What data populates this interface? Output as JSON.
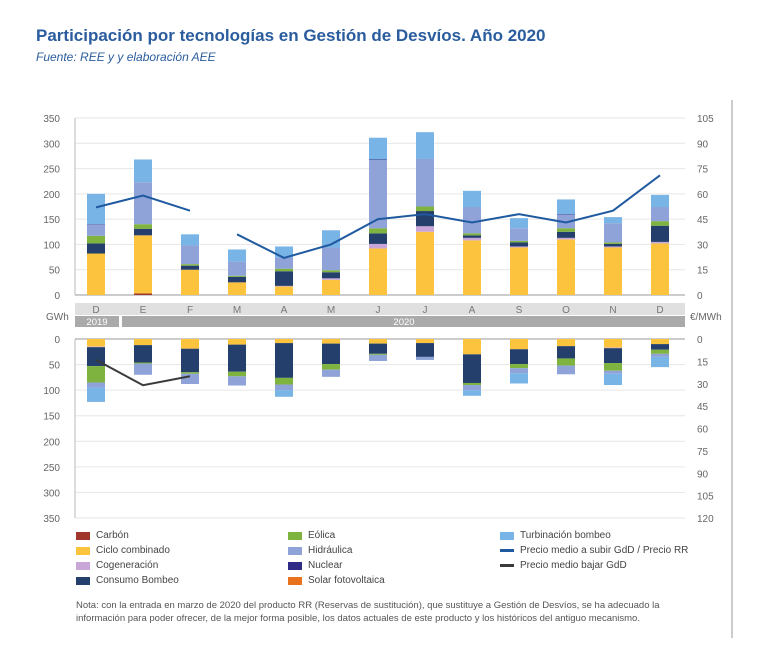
{
  "title": "Participación por tecnologías en Gestión de Desvíos. Año 2020",
  "subtitle": "Fuente: REE y y elaboración AEE",
  "note": "Nota: con la entrada en marzo de 2020 del producto RR (Reservas de sustitución), que sustituye a Gestión de Desvíos, se ha adecuado la información para poder ofrecer, de la mejor forma posible, los datos actuales de este producto y los históricos del antiguo mecanismo.",
  "chart_data": {
    "type": "bar",
    "stacked": true,
    "categories": [
      "D",
      "E",
      "F",
      "M",
      "A",
      "M",
      "J",
      "J",
      "A",
      "S",
      "O",
      "N",
      "D"
    ],
    "year_labels": [
      {
        "label": "2019",
        "months": 1
      },
      {
        "label": "2020",
        "months": 12
      }
    ],
    "left_unit": "GWh",
    "right_unit": "€/MWh",
    "top_ylim": [
      0,
      350
    ],
    "top_yticks": [
      0,
      50,
      100,
      150,
      200,
      250,
      300,
      350
    ],
    "top_y2lim": [
      0,
      105
    ],
    "top_y2ticks": [
      0,
      15,
      30,
      45,
      60,
      75,
      90,
      105
    ],
    "bottom_ylim": [
      0,
      350
    ],
    "bottom_yticks": [
      0,
      50,
      100,
      150,
      200,
      250,
      300,
      350
    ],
    "bottom_y2lim": [
      0,
      120
    ],
    "bottom_y2ticks": [
      0,
      15,
      30,
      45,
      60,
      75,
      90,
      105,
      120
    ],
    "grid": true,
    "series": [
      {
        "name": "Carbón",
        "color": "#a0372a",
        "up": [
          0,
          3,
          0,
          0,
          0,
          0,
          0,
          0,
          0,
          0,
          0,
          0,
          0
        ],
        "down": [
          0,
          0,
          0,
          0,
          0,
          0,
          0,
          0,
          0,
          0,
          0,
          0,
          0
        ]
      },
      {
        "name": "Ciclo combinado",
        "color": "#fcc33f",
        "up": [
          82,
          115,
          50,
          25,
          17,
          30,
          92,
          125,
          108,
          94,
          110,
          94,
          102
        ],
        "down": [
          15,
          12,
          19,
          11,
          8,
          9,
          9,
          8,
          30,
          20,
          14,
          17,
          10
        ]
      },
      {
        "name": "Cogeneración",
        "color": "#c9a6d8",
        "up": [
          0,
          0,
          0,
          0,
          1,
          3,
          9,
          11,
          5,
          2,
          3,
          2,
          3
        ],
        "down": [
          1,
          0,
          0,
          0,
          0,
          0,
          0,
          0,
          0,
          0,
          0,
          1,
          0
        ]
      },
      {
        "name": "Consumo Bombeo",
        "color": "#243f6b",
        "up": [
          20,
          13,
          8,
          11,
          29,
          12,
          21,
          30,
          5,
          8,
          12,
          5,
          32
        ],
        "down": [
          37,
          34,
          46,
          53,
          68,
          40,
          20,
          27,
          56,
          29,
          24,
          29,
          11
        ]
      },
      {
        "name": "Eólica",
        "color": "#7fb33f",
        "up": [
          15,
          9,
          3,
          2,
          5,
          4,
          10,
          9,
          4,
          3,
          7,
          3,
          9
        ],
        "down": [
          32,
          2,
          3,
          9,
          13,
          11,
          2,
          0,
          4,
          8,
          14,
          15,
          8
        ]
      },
      {
        "name": "Hidráulica",
        "color": "#8fa3d8",
        "up": [
          22,
          83,
          37,
          28,
          22,
          45,
          135,
          94,
          52,
          25,
          27,
          38,
          28
        ],
        "down": [
          10,
          22,
          20,
          18,
          11,
          14,
          12,
          6,
          10,
          10,
          17,
          6,
          6
        ]
      },
      {
        "name": "Nuclear",
        "color": "#2e2a85",
        "up": [
          1,
          0,
          0,
          0,
          0,
          0,
          1,
          0,
          0,
          0,
          1,
          0,
          0
        ],
        "down": [
          0,
          0,
          0,
          0,
          0,
          0,
          0,
          0,
          0,
          0,
          0,
          0,
          0
        ]
      },
      {
        "name": "Solar fotovoltaica",
        "color": "#e8731c",
        "up": [
          0,
          0,
          0,
          0,
          0,
          0,
          0,
          0,
          0,
          0,
          0,
          0,
          0
        ],
        "down": [
          0,
          0,
          0,
          0,
          0,
          0,
          0,
          0,
          0,
          0,
          0,
          0,
          0
        ]
      },
      {
        "name": "Turbinación bombeo",
        "color": "#79b4e6",
        "up": [
          60,
          45,
          22,
          24,
          22,
          34,
          43,
          53,
          32,
          20,
          29,
          12,
          24
        ],
        "down": [
          28,
          0,
          0,
          0,
          13,
          0,
          0,
          0,
          11,
          20,
          0,
          22,
          20
        ]
      }
    ],
    "lines": [
      {
        "name": "Precio medio a subir GdD / Precio RR",
        "color": "#1f5aa0",
        "panel": "top",
        "values": [
          52,
          59,
          50,
          36,
          22,
          30,
          45,
          48,
          43,
          48,
          43,
          50,
          71
        ],
        "breaks_after": [
          2
        ]
      },
      {
        "name": "Precio medio bajar GdD",
        "color": "#3a3a3a",
        "panel": "bottom",
        "values": [
          14,
          31,
          25,
          null,
          null,
          null,
          null,
          null,
          null,
          null,
          null,
          null,
          null
        ]
      }
    ]
  }
}
